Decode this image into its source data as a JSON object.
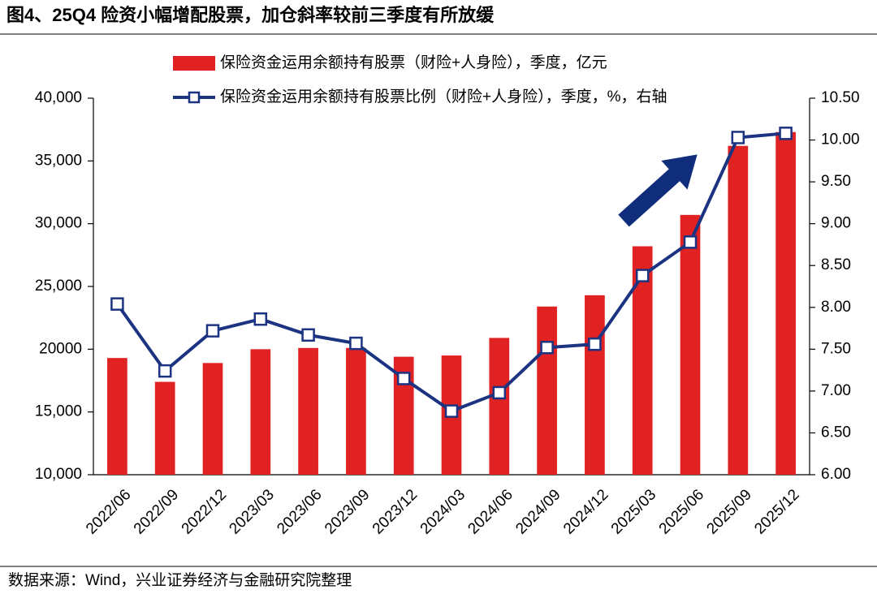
{
  "chart_data": {
    "type": "combo",
    "title": "图4、25Q4 险资小幅增配股票，加仓斜率较前三季度有所放缓",
    "source": "数据来源：Wind，兴业证券经济与金融研究院整理",
    "categories": [
      "2022/06",
      "2022/09",
      "2022/12",
      "2023/03",
      "2023/06",
      "2023/09",
      "2023/12",
      "2024/03",
      "2024/06",
      "2024/09",
      "2024/12",
      "2025/03",
      "2025/06",
      "2025/09",
      "2025/12"
    ],
    "series": [
      {
        "name": "保险资金运用余额持有股票（财险+人身险），季度，亿元",
        "type": "bar",
        "color": "#e02222",
        "axis": "y",
        "values": [
          19300,
          17400,
          18900,
          20000,
          20100,
          20100,
          19400,
          19500,
          20900,
          23400,
          24300,
          28200,
          30700,
          36200,
          37300
        ]
      },
      {
        "name": "保险资金运用余额持有股票比例（财险+人身险），季度，%，右轴",
        "type": "line",
        "color": "#1c3382",
        "axis": "y2",
        "values": [
          8.04,
          7.24,
          7.72,
          7.86,
          7.67,
          7.57,
          7.15,
          6.76,
          6.98,
          7.52,
          7.56,
          8.38,
          8.78,
          10.03,
          10.08
        ]
      }
    ],
    "ylim": [
      10000,
      40000
    ],
    "yticks": [
      {
        "value": 10000,
        "label": "10,000"
      },
      {
        "value": 15000,
        "label": "15,000"
      },
      {
        "value": 20000,
        "label": "20000"
      },
      {
        "value": 25000,
        "label": "25,000"
      },
      {
        "value": 30000,
        "label": "30,000"
      },
      {
        "value": 35000,
        "label": "35,000"
      },
      {
        "value": 40000,
        "label": "40,000"
      }
    ],
    "y2lim": [
      6,
      10.5
    ],
    "y2ticks": [
      {
        "value": 6,
        "label": "6.00"
      },
      {
        "value": 6.5,
        "label": "6.50"
      },
      {
        "value": 7,
        "label": "7.00"
      },
      {
        "value": 7.5,
        "label": "7.50"
      },
      {
        "value": 8,
        "label": "8.00"
      },
      {
        "value": 8.5,
        "label": "8.50"
      },
      {
        "value": 9,
        "label": "9.00"
      },
      {
        "value": 9.5,
        "label": "9.50"
      },
      {
        "value": 10,
        "label": "10.00"
      },
      {
        "value": 10.5,
        "label": "10.50"
      }
    ]
  }
}
